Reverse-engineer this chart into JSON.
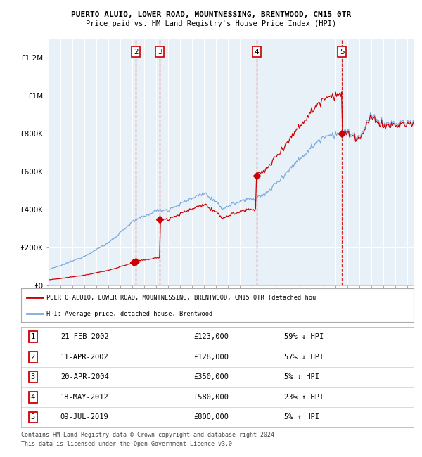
{
  "title_line1": "PUERTO ALUIO, LOWER ROAD, MOUNTNESSING, BRENTWOOD, CM15 0TR",
  "title_line2": "Price paid vs. HM Land Registry's House Price Index (HPI)",
  "xlim_start": 1995.0,
  "xlim_end": 2025.5,
  "ylim": [
    0,
    1300000
  ],
  "yticks": [
    0,
    200000,
    400000,
    600000,
    800000,
    1000000,
    1200000
  ],
  "ytick_labels": [
    "£0",
    "£200K",
    "£400K",
    "£600K",
    "£800K",
    "£1M",
    "£1.2M"
  ],
  "sale_points": [
    {
      "num": 1,
      "year": 2002.13,
      "price": 123000
    },
    {
      "num": 2,
      "year": 2002.3,
      "price": 128000
    },
    {
      "num": 3,
      "year": 2004.3,
      "price": 350000
    },
    {
      "num": 4,
      "year": 2012.38,
      "price": 580000
    },
    {
      "num": 5,
      "year": 2019.52,
      "price": 800000
    }
  ],
  "table_rows": [
    {
      "num": "1",
      "date": "21-FEB-2002",
      "price": "£123,000",
      "hpi": "59% ↓ HPI"
    },
    {
      "num": "2",
      "date": "11-APR-2002",
      "price": "£128,000",
      "hpi": "57% ↓ HPI"
    },
    {
      "num": "3",
      "date": "20-APR-2004",
      "price": "£350,000",
      "hpi": "5% ↓ HPI"
    },
    {
      "num": "4",
      "date": "18-MAY-2012",
      "price": "£580,000",
      "hpi": "23% ↑ HPI"
    },
    {
      "num": "5",
      "date": "09-JUL-2019",
      "price": "£800,000",
      "hpi": "5% ↑ HPI"
    }
  ],
  "legend_line1": "PUERTO ALUIO, LOWER ROAD, MOUNTNESSING, BRENTWOOD, CM15 0TR (detached hou",
  "legend_line2": "HPI: Average price, detached house, Brentwood",
  "footer_line1": "Contains HM Land Registry data © Crown copyright and database right 2024.",
  "footer_line2": "This data is licensed under the Open Government Licence v3.0.",
  "sale_color": "#cc0000",
  "hpi_color": "#7aaadd",
  "plot_bg": "#e8f0f8"
}
